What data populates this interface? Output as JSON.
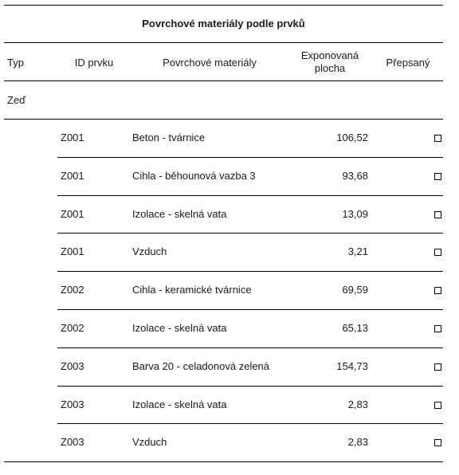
{
  "table": {
    "title": "Povrchové materiály podle prvků",
    "headers": {
      "type": "Typ",
      "element_id": "ID prvku",
      "materials": "Povrchové materiály",
      "exposed_area_line1": "Exponovaná",
      "exposed_area_line2": "plocha",
      "overridden": "Přepsaný"
    },
    "group_label": "Zeď",
    "rows": [
      {
        "id": "Z001",
        "material": "Beton - tvárnice",
        "area": "106,52",
        "overridden": false
      },
      {
        "id": "Z001",
        "material": "Cihla - běhounová vazba 3",
        "area": "93,68",
        "overridden": false
      },
      {
        "id": "Z001",
        "material": "Izolace - skelná vata",
        "area": "13,09",
        "overridden": false
      },
      {
        "id": "Z001",
        "material": "Vzduch",
        "area": "3,21",
        "overridden": false
      },
      {
        "id": "Z002",
        "material": "Cihla - keramické tvárnice",
        "area": "69,59",
        "overridden": false
      },
      {
        "id": "Z002",
        "material": "Izolace - skelná vata",
        "area": "65,13",
        "overridden": false
      },
      {
        "id": "Z003",
        "material": "Barva 20 - celadonová zelená",
        "area": "154,73",
        "overridden": false
      },
      {
        "id": "Z003",
        "material": "Izolace - skelná vata",
        "area": "2,83",
        "overridden": false
      },
      {
        "id": "Z003",
        "material": "Vzduch",
        "area": "2,83",
        "overridden": false
      }
    ]
  }
}
